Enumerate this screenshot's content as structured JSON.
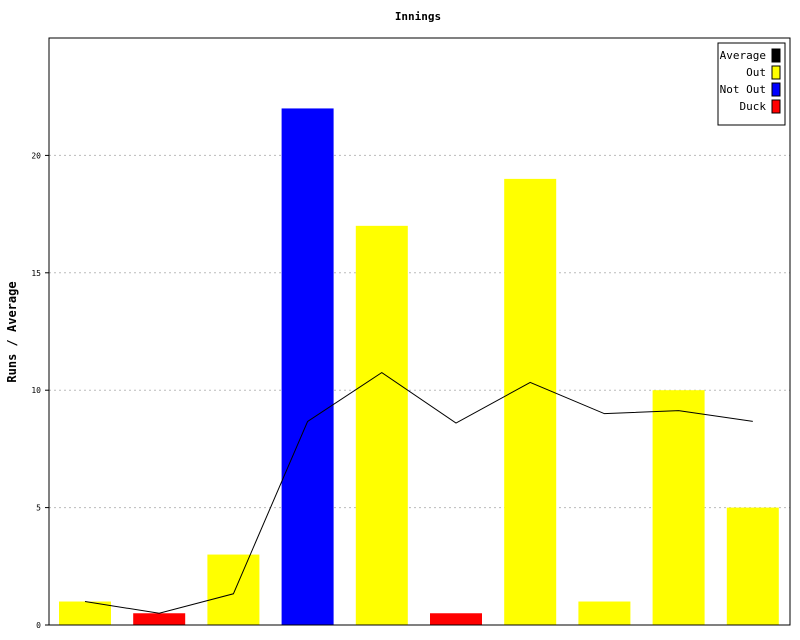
{
  "chart_data": {
    "type": "bar",
    "title": "Innings",
    "xlabel": "",
    "ylabel": "Runs / Average",
    "ylim": [
      0,
      25
    ],
    "yticks": [
      0,
      5,
      10,
      15,
      20
    ],
    "grid": "horizontal dotted",
    "legend_position": "top-right",
    "innings": [
      {
        "runs": 1,
        "status": "Out"
      },
      {
        "runs": 0.5,
        "status": "Duck"
      },
      {
        "runs": 3,
        "status": "Out"
      },
      {
        "runs": 22,
        "status": "Not Out"
      },
      {
        "runs": 17,
        "status": "Out"
      },
      {
        "runs": 0.5,
        "status": "Duck"
      },
      {
        "runs": 19,
        "status": "Out"
      },
      {
        "runs": 1,
        "status": "Out"
      },
      {
        "runs": 10,
        "status": "Out"
      },
      {
        "runs": 5,
        "status": "Out"
      }
    ],
    "average": [
      1,
      0.5,
      1.33,
      8.67,
      10.75,
      8.6,
      10.33,
      9.0,
      9.13,
      8.67
    ],
    "legend": [
      {
        "label": "Average",
        "color": "#000000"
      },
      {
        "label": "Out",
        "color": "#ffff00"
      },
      {
        "label": "Not Out",
        "color": "#0000ff"
      },
      {
        "label": "Duck",
        "color": "#ff0000"
      }
    ],
    "colors": {
      "Out": "#ffff00",
      "Not Out": "#0000ff",
      "Duck": "#ff0000",
      "Average": "#000000"
    }
  }
}
